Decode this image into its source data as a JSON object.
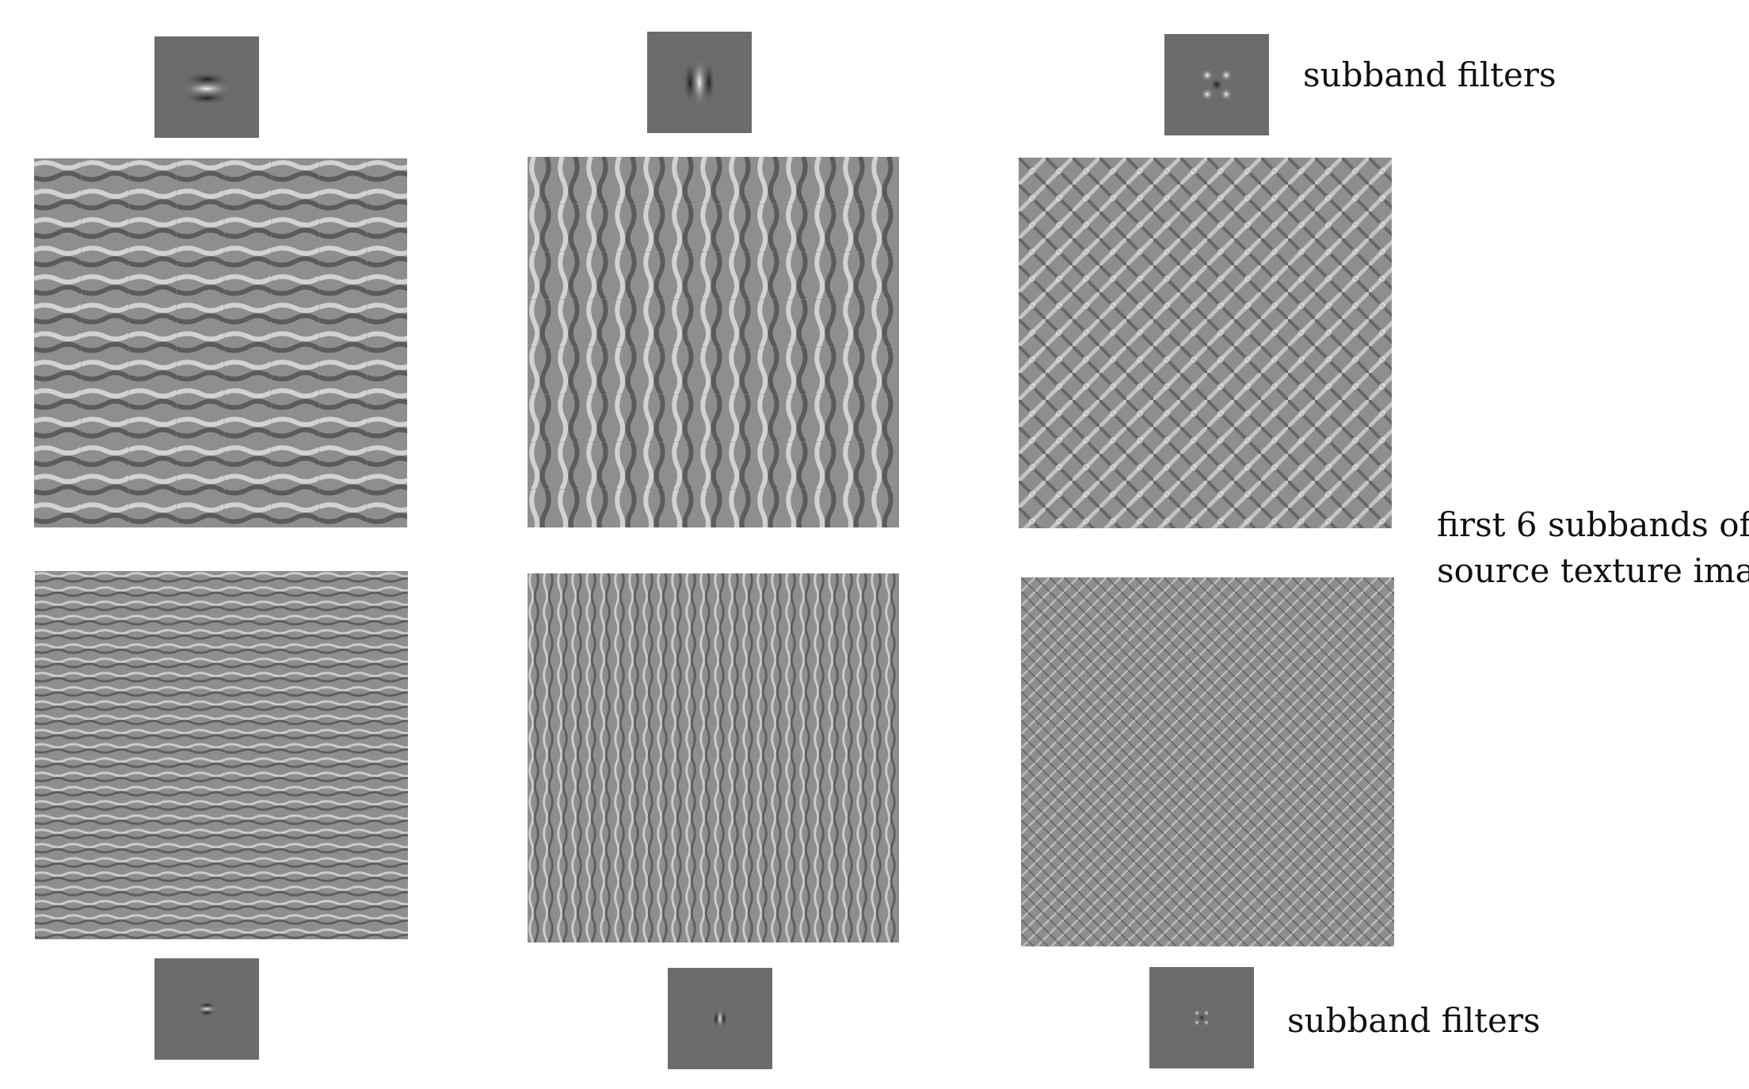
{
  "labels": {
    "top_filters": "subband filters",
    "bottom_filters": "subband filters",
    "subbands_line1": "first 6 subbands of",
    "subbands_line2": "source texture image"
  },
  "colors": {
    "filter_background": "#6c6c6c",
    "subband_mid_gray": "#8e8e8e",
    "stripe_light": "#e4e4e4",
    "stripe_dark": "#383838",
    "text": "#111111"
  },
  "subbands": [
    {
      "row": 1,
      "col": 1,
      "orientation": "horizontal",
      "scale": "coarse"
    },
    {
      "row": 1,
      "col": 2,
      "orientation": "vertical",
      "scale": "coarse"
    },
    {
      "row": 1,
      "col": 3,
      "orientation": "diagonal",
      "scale": "coarse"
    },
    {
      "row": 2,
      "col": 1,
      "orientation": "horizontal",
      "scale": "fine"
    },
    {
      "row": 2,
      "col": 2,
      "orientation": "vertical",
      "scale": "fine"
    },
    {
      "row": 2,
      "col": 3,
      "orientation": "diagonal",
      "scale": "fine"
    }
  ],
  "filters": [
    {
      "position": "top",
      "col": 1,
      "orientation": "horizontal",
      "scale": "coarse"
    },
    {
      "position": "top",
      "col": 2,
      "orientation": "vertical",
      "scale": "coarse"
    },
    {
      "position": "top",
      "col": 3,
      "orientation": "diagonal",
      "scale": "coarse"
    },
    {
      "position": "bottom",
      "col": 1,
      "orientation": "horizontal",
      "scale": "fine"
    },
    {
      "position": "bottom",
      "col": 2,
      "orientation": "vertical",
      "scale": "fine"
    },
    {
      "position": "bottom",
      "col": 3,
      "orientation": "diagonal",
      "scale": "fine"
    }
  ]
}
